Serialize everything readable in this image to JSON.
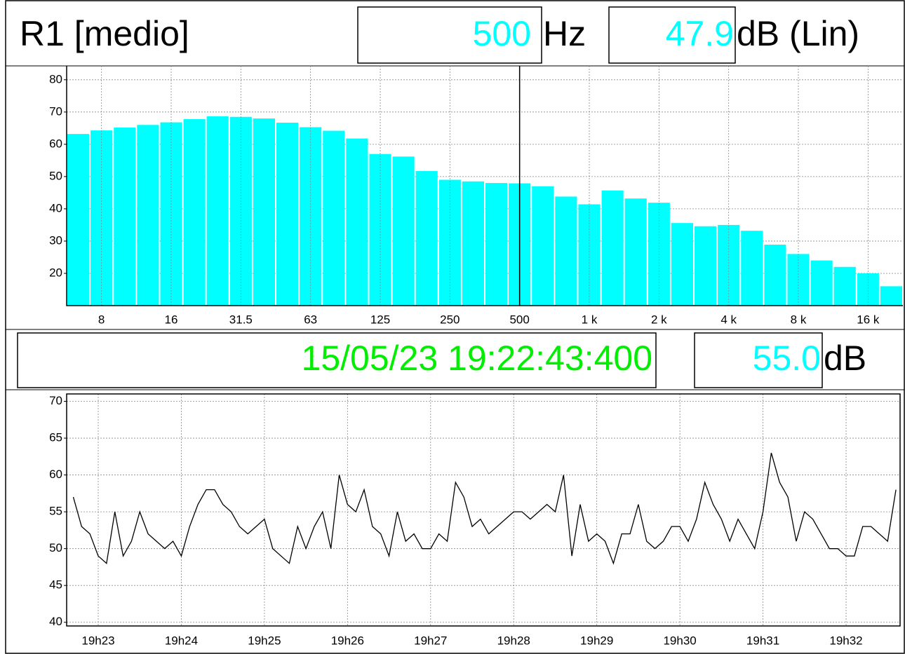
{
  "chart_data": [
    {
      "type": "bar",
      "title": "R1 [medio]",
      "cursor": {
        "category": "500",
        "unit": "Hz",
        "value": 47.9,
        "unit_label": "dB (Lin)"
      },
      "categories": [
        null,
        "8",
        null,
        null,
        "16",
        null,
        null,
        "31.5",
        null,
        null,
        "63",
        null,
        null,
        "125",
        null,
        null,
        "250",
        null,
        null,
        "500",
        null,
        null,
        "1 k",
        null,
        null,
        "2 k",
        null,
        null,
        "4 k",
        null,
        null,
        "8 k",
        null,
        null,
        "16 k",
        null
      ],
      "values": [
        63.2,
        64.3,
        65.2,
        66,
        66.8,
        67.8,
        68.7,
        68.5,
        68,
        66.7,
        65.3,
        64.2,
        61.8,
        57,
        56.2,
        51.7,
        49,
        48.5,
        48,
        47.9,
        47,
        43.8,
        41.4,
        45.7,
        43.2,
        41.9,
        35.6,
        34.6,
        35,
        33.2,
        28.9,
        26,
        24,
        22,
        20,
        16
      ],
      "color": "#00ffff",
      "ylim": [
        10,
        84.3
      ],
      "yticks": [
        20,
        30,
        40,
        50,
        60,
        70,
        80
      ],
      "grid": true
    },
    {
      "type": "line",
      "cursor": {
        "time": "15/05/23 19:22:43:400",
        "value": {
          "value": 55,
          "label": "55.0"
        },
        "unit": "dB"
      },
      "x": [
        22.7,
        22.8,
        22.9,
        23.0,
        23.1,
        23.2,
        23.3,
        23.4,
        23.5,
        23.6,
        23.7,
        23.8,
        23.9,
        24.0,
        24.1,
        24.2,
        24.3,
        24.4,
        24.5,
        24.6,
        24.7,
        24.8,
        24.9,
        25.0,
        25.1,
        25.2,
        25.3,
        25.4,
        25.5,
        25.6,
        25.7,
        25.8,
        25.9,
        26.0,
        26.1,
        26.2,
        26.3,
        26.4,
        26.5,
        26.6,
        26.7,
        26.8,
        26.9,
        27.0,
        27.1,
        27.2,
        27.3,
        27.4,
        27.5,
        27.6,
        27.7,
        27.8,
        27.9,
        28.0,
        28.1,
        28.2,
        28.3,
        28.4,
        28.5,
        28.6,
        28.7,
        28.8,
        28.9,
        29.0,
        29.1,
        29.2,
        29.3,
        29.4,
        29.5,
        29.6,
        29.7,
        29.8,
        29.9,
        30.0,
        30.1,
        30.2,
        30.3,
        30.4,
        30.5,
        30.6,
        30.7,
        30.8,
        30.9,
        31.0,
        31.1,
        31.2,
        31.3,
        31.4,
        31.5,
        31.6,
        31.7,
        31.8,
        31.9,
        32.0,
        32.1,
        32.2,
        32.3,
        32.4,
        32.5,
        32.6
      ],
      "series": [
        {
          "color": "#000000",
          "values": [
            57,
            53,
            52,
            49,
            48,
            55,
            49,
            51,
            55,
            52,
            51,
            50,
            51,
            49,
            53,
            56,
            58,
            58,
            56,
            55,
            53,
            52,
            53,
            54,
            50,
            49,
            48,
            53,
            50,
            53,
            55,
            50,
            60,
            56,
            55,
            58,
            53,
            52,
            49,
            55,
            51,
            52,
            50,
            50,
            52,
            51,
            59,
            57,
            53,
            54,
            52,
            53,
            54,
            55,
            55,
            54,
            55,
            56,
            55,
            60,
            49,
            56,
            51,
            52,
            51,
            48,
            52,
            52,
            56,
            51,
            50,
            51,
            53,
            53,
            51,
            54,
            59,
            56,
            54,
            51,
            54,
            52,
            50,
            55,
            63,
            59,
            57,
            51,
            55,
            54,
            52,
            50,
            50,
            49,
            49,
            53,
            53,
            52,
            51,
            58
          ]
        }
      ],
      "xlim": [
        22.62,
        32.65
      ],
      "xticks": [
        {
          "value": 23,
          "label": "19h23"
        },
        {
          "value": 24,
          "label": "19h24"
        },
        {
          "value": 25,
          "label": "19h25"
        },
        {
          "value": 26,
          "label": "19h26"
        },
        {
          "value": 27,
          "label": "19h27"
        },
        {
          "value": 28,
          "label": "19h28"
        },
        {
          "value": 29,
          "label": "19h29"
        },
        {
          "value": 30,
          "label": "19h30"
        },
        {
          "value": 31,
          "label": "19h31"
        },
        {
          "value": 32,
          "label": "19h32"
        }
      ],
      "ylim": [
        39.5,
        71
      ],
      "yticks": [
        40,
        45,
        50,
        55,
        60,
        65,
        70
      ],
      "grid": true
    }
  ]
}
